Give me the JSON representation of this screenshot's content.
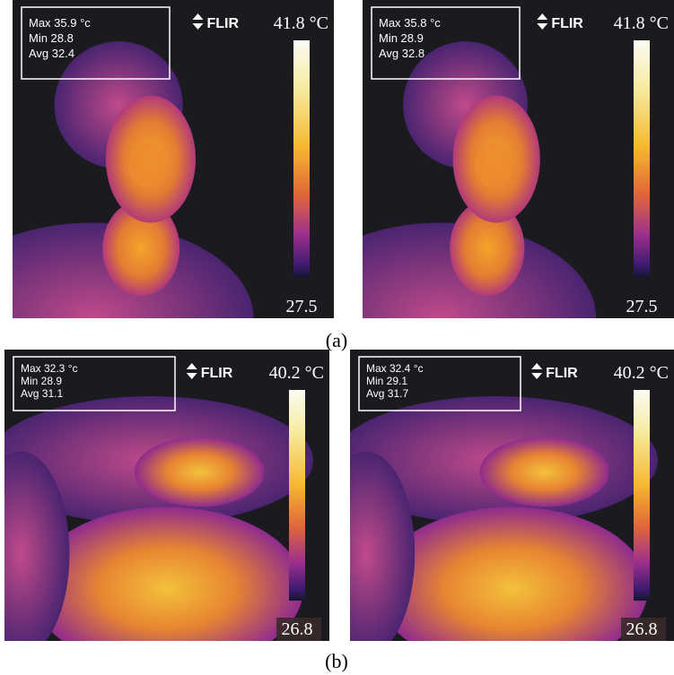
{
  "figure": {
    "panels": [
      {
        "label": "(a)",
        "images": [
          {
            "stats": [
              "Max 35.9 °c",
              "Min 28.8",
              "Avg 32.4"
            ],
            "brand": "FLIR",
            "scale_max": "41.8 °C",
            "scale_min": "27.5"
          },
          {
            "stats": [
              "Max 35.8 °c",
              "Min 28.9",
              "Avg 32.8"
            ],
            "brand": "FLIR",
            "scale_max": "41.8 °C",
            "scale_min": "27.5"
          }
        ]
      },
      {
        "label": "(b)",
        "images": [
          {
            "stats": [
              "Max 32.3 °c",
              "Min 28.9",
              "Avg 31.1"
            ],
            "brand": "FLIR",
            "scale_max": "40.2 °C",
            "scale_min": "26.8"
          },
          {
            "stats": [
              "Max 32.4 °c",
              "Min 29.1",
              "Avg 31.7"
            ],
            "brand": "FLIR",
            "scale_max": "40.2 °C",
            "scale_min": "26.8"
          }
        ]
      }
    ]
  }
}
